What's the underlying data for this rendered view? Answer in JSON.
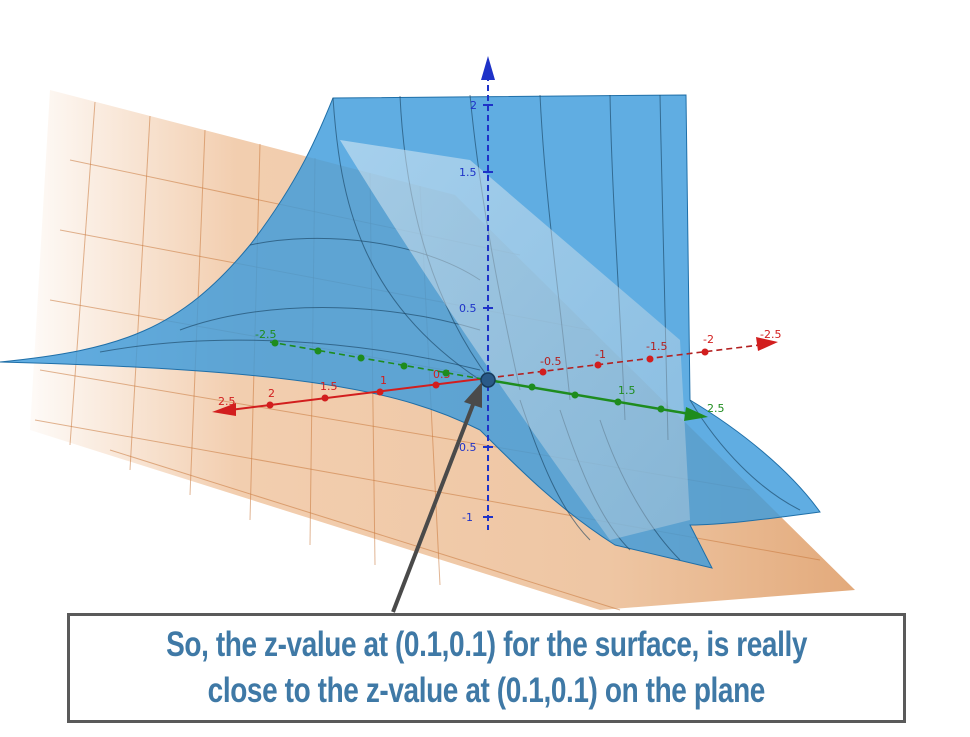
{
  "caption": {
    "line1": "So, the z-value at (0.1,0.1) for the surface, is really",
    "line2": "close to the z-value at (0.1,0.1) on the plane"
  },
  "axes": {
    "z_ticks": [
      "2",
      "1.5",
      "0.5",
      "-0.5",
      "-1"
    ],
    "x_ticks": [
      "2.5",
      "2",
      "1.5",
      "1",
      "0.5",
      "-0.5",
      "-1",
      "-1.5",
      "-2",
      "-2.5"
    ],
    "y_ticks": [
      "-2.5",
      "1.5",
      "2.5"
    ],
    "x_color": "#d21e1e",
    "y_color": "#1e8c1e",
    "z_color": "#1e32c8"
  },
  "colors": {
    "surface": "#3d9bdc",
    "plane": "#e8a66e",
    "plane_grid": "#c8783c",
    "caption_text": "#3f79a6",
    "caption_border": "#5a5a5a"
  }
}
